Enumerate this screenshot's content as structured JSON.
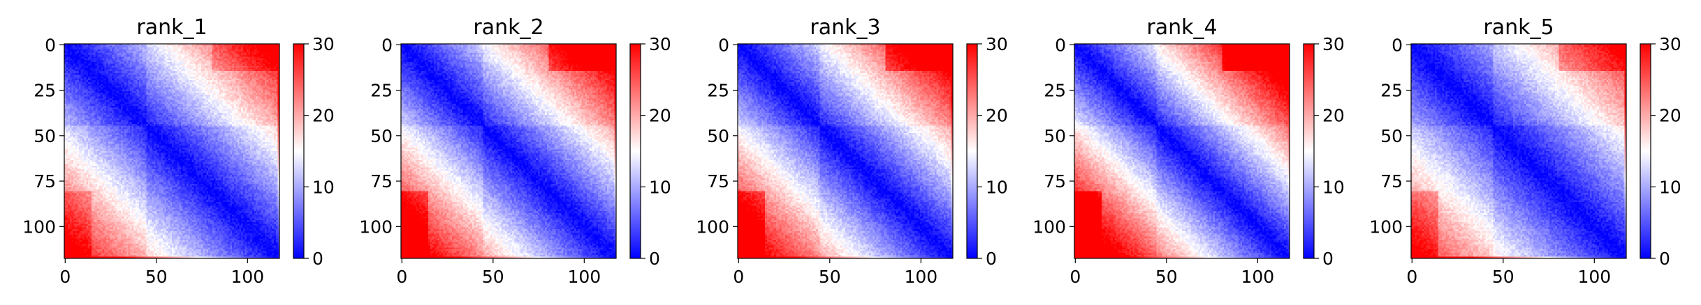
{
  "chart_data": [
    {
      "type": "heatmap",
      "title": "rank_1",
      "n": 118,
      "xticks": [
        0,
        50,
        100
      ],
      "yticks": [
        0,
        25,
        50,
        75,
        100
      ],
      "colorbar": {
        "min": 0,
        "max": 30,
        "ticks": [
          0,
          10,
          20,
          30
        ]
      },
      "colormap": {
        "low": "#0000ff",
        "mid": "#ffffff",
        "high": "#ff0000"
      },
      "pattern": {
        "rate": 0.25,
        "scale": 1.0,
        "block_break": 45,
        "corner_boost": 0
      }
    },
    {
      "type": "heatmap",
      "title": "rank_2",
      "n": 118,
      "xticks": [
        0,
        50,
        100
      ],
      "yticks": [
        0,
        25,
        50,
        75,
        100
      ],
      "colorbar": {
        "min": 0,
        "max": 30,
        "ticks": [
          0,
          10,
          20,
          30
        ]
      },
      "colormap": {
        "low": "#0000ff",
        "mid": "#ffffff",
        "high": "#ff0000"
      },
      "pattern": {
        "rate": 0.27,
        "scale": 1.05,
        "block_break": 45,
        "corner_boost": 2
      }
    },
    {
      "type": "heatmap",
      "title": "rank_3",
      "n": 118,
      "xticks": [
        0,
        50,
        100
      ],
      "yticks": [
        0,
        25,
        50,
        75,
        100
      ],
      "colorbar": {
        "min": 0,
        "max": 30,
        "ticks": [
          0,
          10,
          20,
          30
        ]
      },
      "colormap": {
        "low": "#0000ff",
        "mid": "#ffffff",
        "high": "#ff0000"
      },
      "pattern": {
        "rate": 0.27,
        "scale": 1.05,
        "block_break": 45,
        "corner_boost": 2
      }
    },
    {
      "type": "heatmap",
      "title": "rank_4",
      "n": 118,
      "xticks": [
        0,
        50,
        100
      ],
      "yticks": [
        0,
        25,
        50,
        75,
        100
      ],
      "colorbar": {
        "min": 0,
        "max": 30,
        "ticks": [
          0,
          10,
          20,
          30
        ]
      },
      "colormap": {
        "low": "#0000ff",
        "mid": "#ffffff",
        "high": "#ff0000"
      },
      "pattern": {
        "rate": 0.29,
        "scale": 1.1,
        "block_break": 45,
        "corner_boost": 3
      }
    },
    {
      "type": "heatmap",
      "title": "rank_5",
      "n": 118,
      "xticks": [
        0,
        50,
        100
      ],
      "yticks": [
        0,
        25,
        50,
        75,
        100
      ],
      "colorbar": {
        "min": 0,
        "max": 30,
        "ticks": [
          0,
          10,
          20,
          30
        ]
      },
      "colormap": {
        "low": "#0000ff",
        "mid": "#ffffff",
        "high": "#ff0000"
      },
      "pattern": {
        "rate": 0.24,
        "scale": 0.95,
        "block_break": 45,
        "corner_boost": 1
      }
    }
  ]
}
